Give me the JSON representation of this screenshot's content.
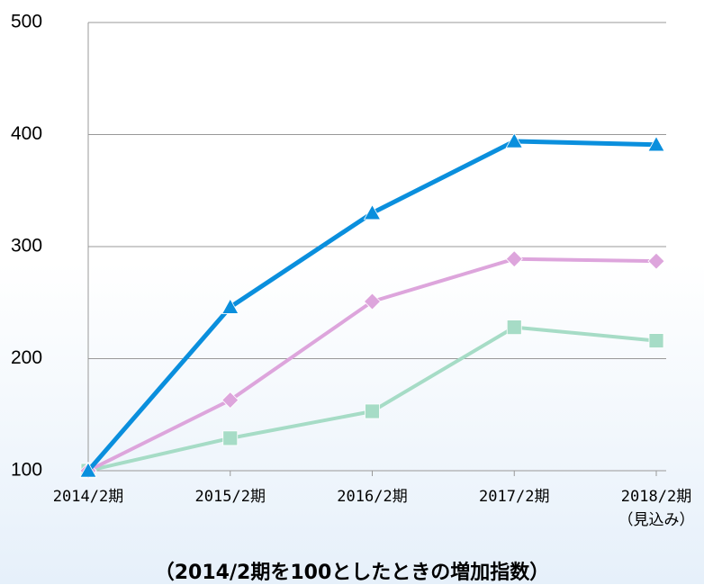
{
  "chart_data": {
    "type": "line",
    "categories": [
      "2014/2期",
      "2015/2期",
      "2016/2期",
      "2017/2期",
      "2018/2期\n（見込み）"
    ],
    "x_label": "（2014/2期を100としたときの増加指数）",
    "series": [
      {
        "color": "#0a8fdd",
        "marker": "triangle",
        "values": [
          100,
          246,
          330,
          394,
          391
        ]
      },
      {
        "color": "#dda5dc",
        "marker": "diamond",
        "values": [
          100,
          163,
          251,
          289,
          287
        ]
      },
      {
        "color": "#a6dcc6",
        "marker": "square",
        "values": [
          100,
          129,
          153,
          228,
          216
        ]
      }
    ],
    "ylim": [
      100,
      500
    ],
    "yticks": [
      100,
      200,
      300,
      400,
      500
    ],
    "grid": true
  }
}
